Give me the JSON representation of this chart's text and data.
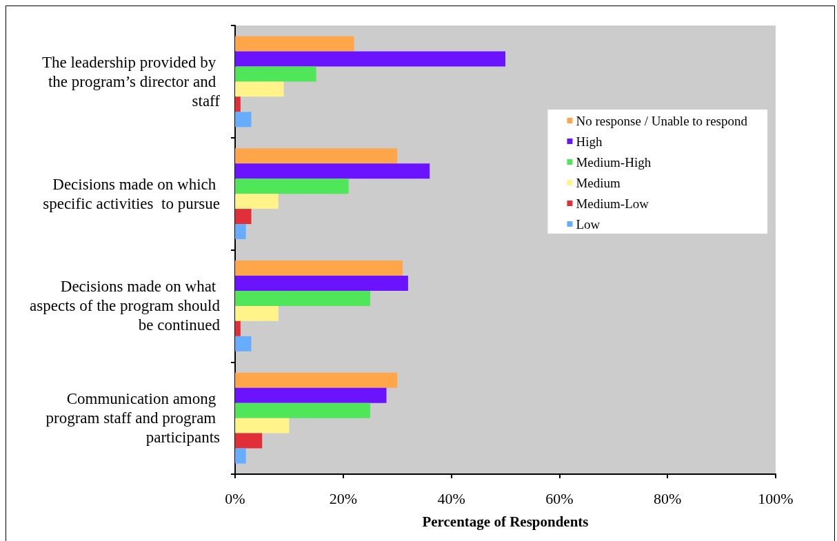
{
  "chart_data": {
    "type": "bar",
    "orientation": "horizontal",
    "categories": [
      "The leadership provided by the program’s director and staff",
      "Decisions made on which specific activities  to pursue",
      "Decisions made on what aspects of the program should be continued",
      "Communication among program staff and program participants"
    ],
    "series": [
      {
        "name": "No response / Unable to respond",
        "color": "#ffa64a",
        "values": [
          22,
          30,
          31,
          30
        ]
      },
      {
        "name": "High",
        "color": "#6b12ff",
        "values": [
          50,
          36,
          32,
          28
        ]
      },
      {
        "name": "Medium-High",
        "color": "#50e65a",
        "values": [
          15,
          21,
          25,
          25
        ]
      },
      {
        "name": "Medium",
        "color": "#fff38a",
        "values": [
          9,
          8,
          8,
          10
        ]
      },
      {
        "name": "Medium-Low",
        "color": "#e02f38",
        "values": [
          1,
          3,
          1,
          5
        ]
      },
      {
        "name": "Low",
        "color": "#66adff",
        "values": [
          3,
          2,
          3,
          2
        ]
      }
    ],
    "xlabel": "Percentage of Respondents",
    "xlim": [
      0,
      100
    ],
    "xticks": [
      {
        "value": 0,
        "label": "0%"
      },
      {
        "value": 20,
        "label": "20%"
      },
      {
        "value": 40,
        "label": "40%"
      },
      {
        "value": 60,
        "label": "60%"
      },
      {
        "value": 80,
        "label": "80%"
      },
      {
        "value": 100,
        "label": "100%"
      }
    ],
    "grid": false,
    "legend": "right"
  }
}
